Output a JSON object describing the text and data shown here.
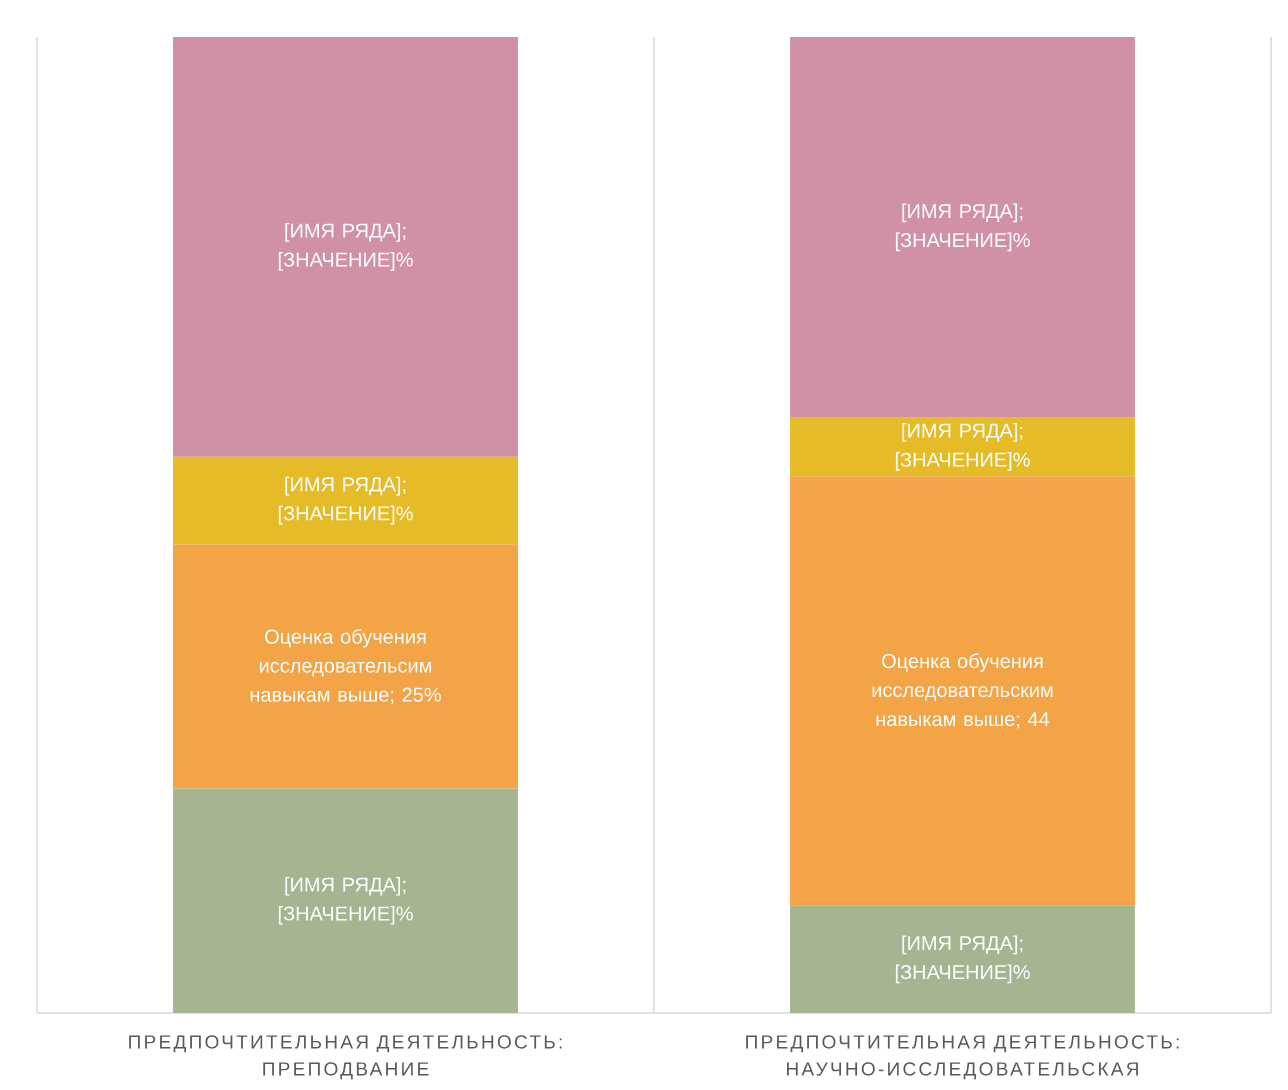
{
  "chart_data": {
    "type": "bar",
    "stacked": true,
    "categories": [
      "ПРЕДПОЧТИТЕЛЬНАЯ ДЕЯТЕЛЬНОСТЬ: ПРЕПОДВАНИЕ",
      "ПРЕДПОЧТИТЕЛЬНАЯ ДЕЯТЕЛЬНОСТЬ: НАУЧНО-ИССЛЕДОВАТЕЛЬСКАЯ"
    ],
    "ylim": [
      0,
      100
    ],
    "tick_labels": "x",
    "grid": "x",
    "series": [
      {
        "color": "#a5b592",
        "values": [
          23,
          11
        ],
        "value_labels": [
          "[ИМЯ РЯДА]; [ЗНАЧЕНИЕ]%",
          "[ИМЯ РЯДА]; [ЗНАЧЕНИЕ]%"
        ]
      },
      {
        "color": "#f2a447",
        "values": [
          25,
          44
        ],
        "value_labels": [
          "Оценка обучения исследовательсим навыкам выше; 25%",
          "Оценка обучения исследовательским навыкам выше; 44"
        ]
      },
      {
        "color": "#e5bc28",
        "values": [
          9,
          6
        ],
        "value_labels": [
          "[ИМЯ РЯДА]; [ЗНАЧЕНИЕ]%",
          "[ИМЯ РЯДА]; [ЗНАЧЕНИЕ]%"
        ]
      },
      {
        "color": "#d091a7",
        "values": [
          43,
          39
        ],
        "value_labels": [
          "[ИМЯ РЯДА]; [ЗНАЧЕНИЕ]%",
          "[ИМЯ РЯДА]; [ЗНАЧЕНИЕ]%"
        ]
      }
    ]
  }
}
